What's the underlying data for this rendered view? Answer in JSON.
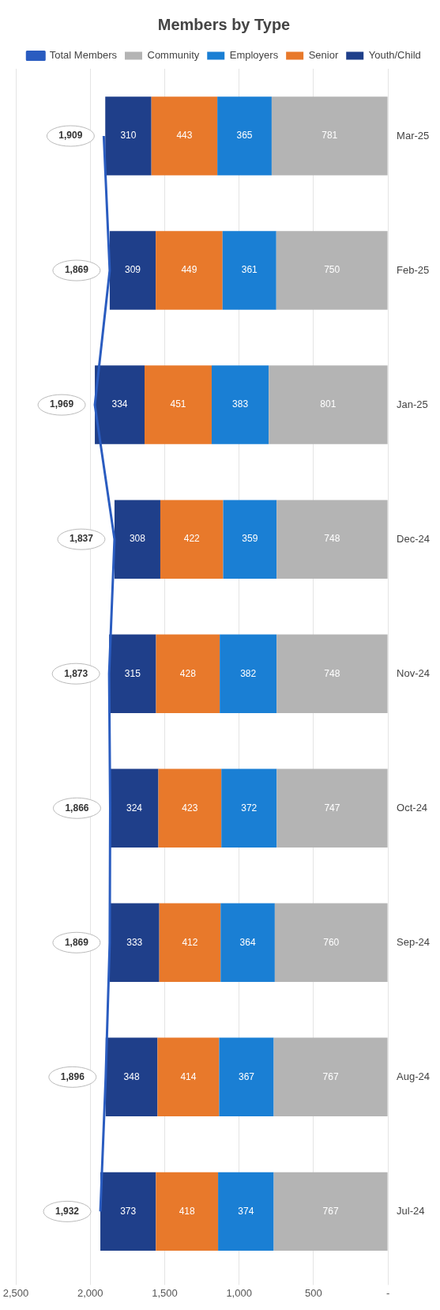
{
  "chart_data": {
    "type": "bar",
    "orientation": "horizontal",
    "stacked": true,
    "title": "Members by Type",
    "categories": [
      "Mar-25",
      "Feb-25",
      "Jan-25",
      "Dec-24",
      "Nov-24",
      "Oct-24",
      "Sep-24",
      "Aug-24",
      "Jul-24"
    ],
    "series": [
      {
        "name": "Community",
        "color": "#b4b4b4",
        "values": [
          781,
          750,
          801,
          748,
          748,
          747,
          760,
          767,
          767
        ],
        "value_labels": [
          "781",
          "750",
          "801",
          "748",
          "748",
          "747",
          "760",
          "767",
          "767"
        ]
      },
      {
        "name": "Employers",
        "color": "#1a7fd4",
        "values": [
          365,
          361,
          383,
          359,
          382,
          372,
          364,
          367,
          374
        ],
        "value_labels": [
          "365",
          "361",
          "383",
          "359",
          "382",
          "372",
          "364",
          "367",
          "374"
        ]
      },
      {
        "name": "Senior",
        "color": "#e8792b",
        "values": [
          443,
          449,
          451,
          422,
          428,
          423,
          412,
          414,
          418
        ],
        "value_labels": [
          "443",
          "449",
          "451",
          "422",
          "428",
          "423",
          "412",
          "414",
          "418"
        ]
      },
      {
        "name": "Youth/Child",
        "color": "#1f3f8a",
        "values": [
          310,
          309,
          334,
          308,
          315,
          324,
          333,
          348,
          373
        ],
        "value_labels": [
          "310",
          "309",
          "334",
          "308",
          "315",
          "324",
          "333",
          "348",
          "373"
        ]
      },
      {
        "name": "Total Members",
        "type": "line",
        "color": "#2a5cc0",
        "values": [
          1909,
          1869,
          1969,
          1837,
          1873,
          1866,
          1869,
          1896,
          1932
        ],
        "value_labels": [
          "1,909",
          "1,869",
          "1,969",
          "1,837",
          "1,873",
          "1,866",
          "1,869",
          "1,896",
          "1,932"
        ]
      }
    ],
    "xlim": [
      2500,
      0
    ],
    "xticks": [
      {
        "value": 2500,
        "label": "2,500"
      },
      {
        "value": 2000,
        "label": "2,000"
      },
      {
        "value": 1500,
        "label": "1,500"
      },
      {
        "value": 1000,
        "label": "1,000"
      },
      {
        "value": 500,
        "label": "500"
      },
      {
        "value": 0,
        "label": "-"
      }
    ],
    "grid": "x",
    "legend": "top",
    "marker": "none"
  }
}
